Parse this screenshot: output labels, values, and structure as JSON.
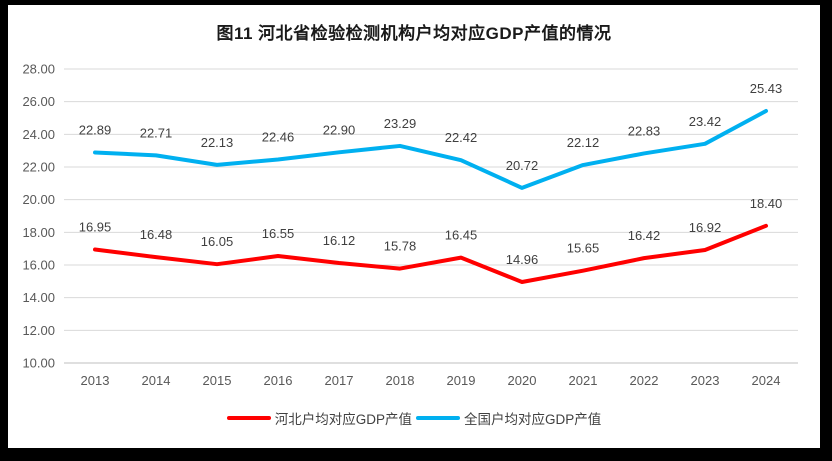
{
  "chart_data": {
    "type": "line",
    "title": "图11 河北省检验检测机构户均对应GDP产值的情况",
    "categories": [
      "2013",
      "2014",
      "2015",
      "2016",
      "2017",
      "2018",
      "2019",
      "2020",
      "2021",
      "2022",
      "2023",
      "2024"
    ],
    "series": [
      {
        "name": "河北户均对应GDP产值",
        "color": "#FF0000",
        "values": [
          16.95,
          16.48,
          16.05,
          16.55,
          16.12,
          15.78,
          16.45,
          14.96,
          15.65,
          16.42,
          16.92,
          18.4
        ]
      },
      {
        "name": "全国户均对应GDP产值",
        "color": "#00B0F0",
        "values": [
          22.89,
          22.71,
          22.13,
          22.46,
          22.9,
          23.29,
          22.42,
          20.72,
          22.12,
          22.83,
          23.42,
          25.43
        ]
      }
    ],
    "ylim": [
      10,
      28
    ],
    "ytick_step": 2,
    "ytick_decimals": 2,
    "data_label_decimals": 2,
    "grid": true,
    "legend_position": "bottom",
    "colors": {
      "gridline": "#D9D9D9",
      "axis_line": "#BFBFBF",
      "tick_text": "#595959",
      "data_label_text": "#404040",
      "background": "#FFFFFF",
      "frame_border": "#000000"
    }
  }
}
